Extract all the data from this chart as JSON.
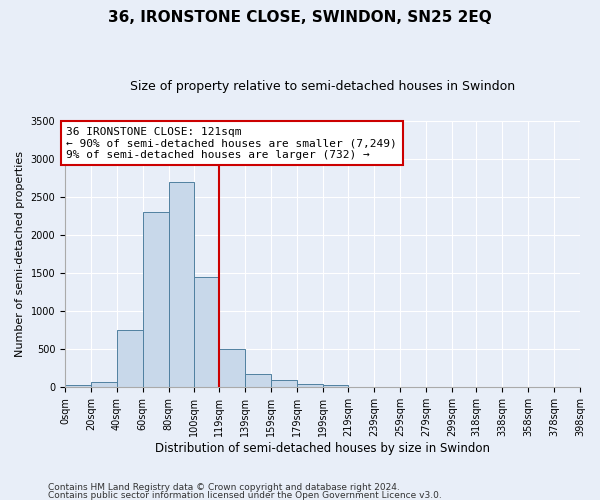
{
  "title": "36, IRONSTONE CLOSE, SWINDON, SN25 2EQ",
  "subtitle": "Size of property relative to semi-detached houses in Swindon",
  "xlabel": "Distribution of semi-detached houses by size in Swindon",
  "ylabel": "Number of semi-detached properties",
  "footer1": "Contains HM Land Registry data © Crown copyright and database right 2024.",
  "footer2": "Contains public sector information licensed under the Open Government Licence v3.0.",
  "annotation_line1": "36 IRONSTONE CLOSE: 121sqm",
  "annotation_line2": "← 90% of semi-detached houses are smaller (7,249)",
  "annotation_line3": "9% of semi-detached houses are larger (732) →",
  "bar_edges": [
    0,
    20,
    40,
    60,
    80,
    100,
    119,
    139,
    159,
    179,
    199,
    219,
    239,
    259,
    279,
    299,
    318,
    338,
    358,
    378,
    398
  ],
  "bar_heights": [
    25,
    75,
    750,
    2300,
    2700,
    1450,
    500,
    175,
    100,
    50,
    25,
    10,
    5,
    3,
    2,
    1,
    0,
    0,
    0,
    0
  ],
  "bar_color": "#c8d8ea",
  "bar_edge_color": "#5080a0",
  "vline_color": "#cc0000",
  "vline_x": 119,
  "ylim": [
    0,
    3500
  ],
  "yticks": [
    0,
    500,
    1000,
    1500,
    2000,
    2500,
    3000,
    3500
  ],
  "background_color": "#e8eef8",
  "plot_background": "#e8eef8",
  "tick_labels": [
    "0sqm",
    "20sqm",
    "40sqm",
    "60sqm",
    "80sqm",
    "100sqm",
    "119sqm",
    "139sqm",
    "159sqm",
    "179sqm",
    "199sqm",
    "219sqm",
    "239sqm",
    "259sqm",
    "279sqm",
    "299sqm",
    "318sqm",
    "338sqm",
    "358sqm",
    "378sqm",
    "398sqm"
  ],
  "annotation_box_color": "#ffffff",
  "annotation_box_edge": "#cc0000",
  "title_fontsize": 11,
  "subtitle_fontsize": 9,
  "axis_label_fontsize": 8,
  "tick_fontsize": 7,
  "footer_fontsize": 6.5,
  "annotation_fontsize": 8
}
